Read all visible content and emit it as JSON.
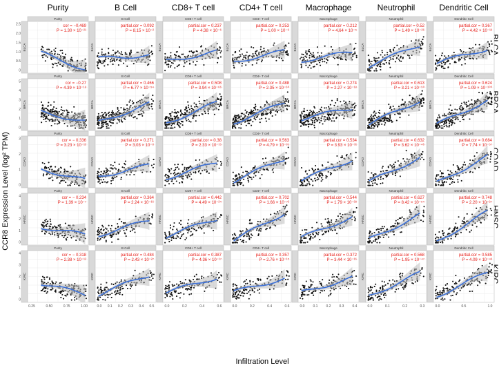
{
  "chart_data": {
    "type": "scatter",
    "xlabel": "Infiltration Level",
    "ylabel": "CCR8 Expression Level (log² TPM)",
    "columns": [
      "Purity",
      "B Cell",
      "CD8+ T cell",
      "CD4+ T cell",
      "Macrophage",
      "Neutrophil",
      "Dendritic Cell"
    ],
    "strip_labels": [
      "Purity",
      "B Cell",
      "CD8+ T cell",
      "CD4+ T cell",
      "Macrophage",
      "Neutrophil",
      "Dendritic Cell"
    ],
    "rows": [
      "BLCA",
      "BRCA",
      "COAD",
      "HNSC",
      "KIRC"
    ],
    "row_strip_labels": [
      "BLCA",
      "BRCA",
      "COAD",
      "HNSC",
      "KIRC"
    ],
    "y_ticks": [
      [
        "0",
        "0.5",
        "1.0",
        "1.5",
        "2.0",
        "2.5"
      ],
      [
        "0",
        "1",
        "2",
        "3",
        "4",
        "5"
      ],
      [
        "0",
        "1",
        "2",
        "3"
      ],
      [
        "0",
        "1",
        "2",
        "3",
        "4"
      ],
      [
        "0",
        "1",
        "2",
        "3",
        "4"
      ]
    ],
    "x_ticks": [
      [
        "0.25",
        "0.50",
        "0.75",
        "1.00"
      ],
      [
        "0.0",
        "0.1",
        "0.2",
        "0.3",
        "0.4",
        "0.5"
      ],
      [
        "0.0",
        "0.2",
        "0.4",
        "0.6"
      ],
      [
        "0.0",
        "0.2",
        "0.4",
        "0.6"
      ],
      [
        "0.0",
        "0.1",
        "0.2",
        "0.3",
        "0.4"
      ],
      [
        "0.0",
        "0.1",
        "0.2",
        "0.3"
      ],
      [
        "0.0",
        "0.5",
        "1.0"
      ]
    ],
    "annotations": [
      [
        {
          "cor": "cor = −0.469",
          "p": "P = 1.30 × 10⁻²¹"
        },
        {
          "cor": "partial.cor = 0.092",
          "p": "P = 8.15 × 10⁻²"
        },
        {
          "cor": "partial.cor = 0.237",
          "p": "P = 4.38 × 10⁻⁶"
        },
        {
          "cor": "partial.cor = 0.253",
          "p": "P = 1.00 × 10⁻⁶"
        },
        {
          "cor": "partial.cor = 0.212",
          "p": "P = 4.64 × 10⁻⁵"
        },
        {
          "cor": "partial.cor = 0.52",
          "p": "P = 1.49 × 10⁻²⁶"
        },
        {
          "cor": "partial.cor = 0.367",
          "p": "P = 4.42 × 10⁻¹³"
        }
      ],
      [
        {
          "cor": "cor = −0.27",
          "p": "P = 4.39 × 10⁻¹⁸"
        },
        {
          "cor": "partial.cor = 0.466",
          "p": "P = 6.77 × 10⁻⁵⁴"
        },
        {
          "cor": "partial.cor = 0.508",
          "p": "P = 3.94 × 10⁻⁶⁶"
        },
        {
          "cor": "partial.cor = 0.488",
          "p": "P = 2.35 × 10⁻⁶⁰"
        },
        {
          "cor": "partial.cor = 0.274",
          "p": "P = 2.27 × 10⁻¹⁸"
        },
        {
          "cor": "partial.cor = 0.613",
          "p": "P = 3.21 × 10⁻⁹⁰"
        },
        {
          "cor": "partial.cor = 0.624",
          "p": "P = 1.09 × 10⁻¹⁰⁰"
        }
      ],
      [
        {
          "cor": "cor = − 0.336",
          "p": "P = 3.23 × 10⁻¹²"
        },
        {
          "cor": "partial.cor = 0.271",
          "p": "P = 3.03 × 10⁻⁸"
        },
        {
          "cor": "partial.cor = 0.38",
          "p": "P = 2.33 × 10⁻¹⁵"
        },
        {
          "cor": "partial.cor = 0.563",
          "p": "P = 4.79 × 10⁻³⁵"
        },
        {
          "cor": "partial.cor = 0.534",
          "p": "P = 3.93 × 10⁻³¹"
        },
        {
          "cor": "partial.cor = 0.632",
          "p": "P = 3.62 × 10⁻⁴⁶"
        },
        {
          "cor": "partial.cor = 0.684",
          "p": "P = 7.74 × 10⁻⁵⁷"
        }
      ],
      [
        {
          "cor": "cor = − 0.234",
          "p": "P = 1.39 × 10⁻⁷"
        },
        {
          "cor": "partial.cor = 0.364",
          "p": "P = 2.24 × 10⁻¹⁶"
        },
        {
          "cor": "partial.cor = 0.442",
          "p": "P = 4.49 × 10⁻²⁴"
        },
        {
          "cor": "partial.cor = 0.702",
          "p": "P = 1.66 × 10⁻⁷²"
        },
        {
          "cor": "partial.cor = 0.544",
          "p": "P = 1.79 × 10⁻³⁸"
        },
        {
          "cor": "partial.cor = 0.627",
          "p": "P = 8.42 × 10⁻⁵⁴"
        },
        {
          "cor": "partial.cor = 0.748",
          "p": "P = 2.20 × 10⁻⁸⁷"
        }
      ],
      [
        {
          "cor": "cor = − 0.318",
          "p": "P = 2.38 × 10⁻¹²"
        },
        {
          "cor": "partial.cor = 0.484",
          "p": "P = 2.43 × 10⁻²⁷"
        },
        {
          "cor": "partial.cor = 0.387",
          "p": "P = 4.36 × 10⁻¹⁷"
        },
        {
          "cor": "partial.cor = 0.357",
          "p": "P = 2.76 × 10⁻¹⁵"
        },
        {
          "cor": "partial.cor = 0.372",
          "p": "P = 3.44 × 10⁻¹⁶"
        },
        {
          "cor": "partial.cor = 0.568",
          "p": "P = 1.95 × 10⁻⁴⁷"
        },
        {
          "cor": "partial.cor = 0.585",
          "p": "P = 4.09 × 10⁻⁴³"
        }
      ]
    ],
    "correlations": [
      [
        -0.469,
        0.092,
        0.237,
        0.253,
        0.212,
        0.52,
        0.367
      ],
      [
        -0.27,
        0.466,
        0.508,
        0.488,
        0.274,
        0.613,
        0.624
      ],
      [
        -0.336,
        0.271,
        0.38,
        0.563,
        0.534,
        0.632,
        0.684
      ],
      [
        -0.234,
        0.364,
        0.442,
        0.702,
        0.544,
        0.627,
        0.748
      ],
      [
        -0.318,
        0.484,
        0.387,
        0.357,
        0.372,
        0.568,
        0.585
      ]
    ],
    "colors": {
      "points": "#111111",
      "fit_line": "#3a6fd8",
      "confidence_band": "#bdbdbd",
      "annotation": "#e8201b",
      "strip": "#d9d9d9"
    },
    "grid": true
  }
}
